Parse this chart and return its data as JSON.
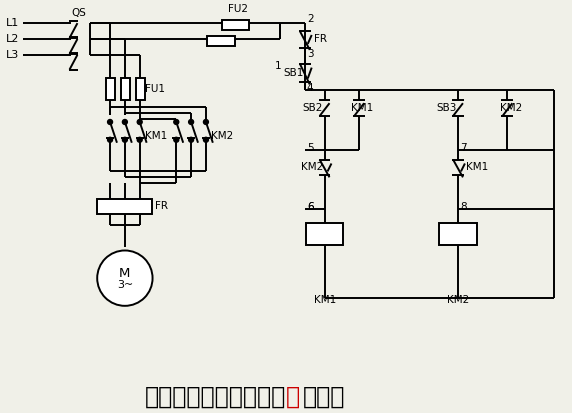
{
  "bg_color": "#f0f0e8",
  "lc": "#000000",
  "lw": 1.4,
  "figsize": [
    5.72,
    4.13
  ],
  "dpi": 100,
  "title_black": [
    "电气互锁控制电动机正",
    "转电路"
  ],
  "title_red": "反",
  "title_fontsize": 17
}
